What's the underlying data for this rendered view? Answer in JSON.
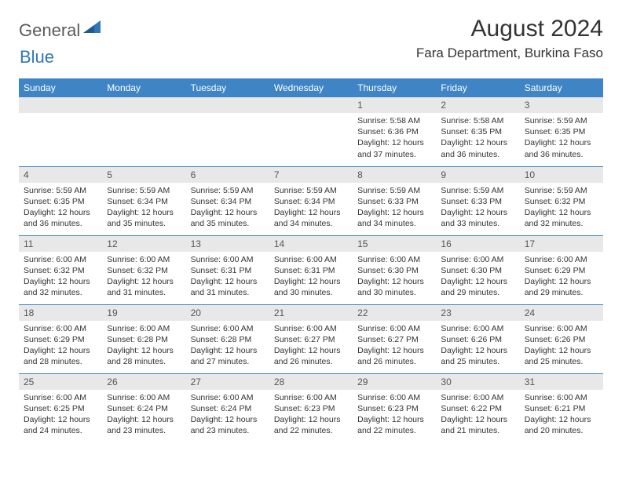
{
  "logo": {
    "general": "General",
    "blue": "Blue"
  },
  "title": "August 2024",
  "location": "Fara Department, Burkina Faso",
  "colors": {
    "header_bg": "#3f85c5",
    "header_text": "#ffffff",
    "daynum_bg": "#e8e8e8",
    "daynum_text": "#555555",
    "text": "#333333",
    "logo_gray": "#5b5b5b",
    "logo_blue": "#2f77b8",
    "border": "#3f85c5"
  },
  "weekdays": [
    "Sunday",
    "Monday",
    "Tuesday",
    "Wednesday",
    "Thursday",
    "Friday",
    "Saturday"
  ],
  "weeks": [
    [
      null,
      null,
      null,
      null,
      {
        "n": "1",
        "sr": "5:58 AM",
        "ss": "6:36 PM",
        "dl": "12 hours and 37 minutes."
      },
      {
        "n": "2",
        "sr": "5:58 AM",
        "ss": "6:35 PM",
        "dl": "12 hours and 36 minutes."
      },
      {
        "n": "3",
        "sr": "5:59 AM",
        "ss": "6:35 PM",
        "dl": "12 hours and 36 minutes."
      }
    ],
    [
      {
        "n": "4",
        "sr": "5:59 AM",
        "ss": "6:35 PM",
        "dl": "12 hours and 36 minutes."
      },
      {
        "n": "5",
        "sr": "5:59 AM",
        "ss": "6:34 PM",
        "dl": "12 hours and 35 minutes."
      },
      {
        "n": "6",
        "sr": "5:59 AM",
        "ss": "6:34 PM",
        "dl": "12 hours and 35 minutes."
      },
      {
        "n": "7",
        "sr": "5:59 AM",
        "ss": "6:34 PM",
        "dl": "12 hours and 34 minutes."
      },
      {
        "n": "8",
        "sr": "5:59 AM",
        "ss": "6:33 PM",
        "dl": "12 hours and 34 minutes."
      },
      {
        "n": "9",
        "sr": "5:59 AM",
        "ss": "6:33 PM",
        "dl": "12 hours and 33 minutes."
      },
      {
        "n": "10",
        "sr": "5:59 AM",
        "ss": "6:32 PM",
        "dl": "12 hours and 32 minutes."
      }
    ],
    [
      {
        "n": "11",
        "sr": "6:00 AM",
        "ss": "6:32 PM",
        "dl": "12 hours and 32 minutes."
      },
      {
        "n": "12",
        "sr": "6:00 AM",
        "ss": "6:32 PM",
        "dl": "12 hours and 31 minutes."
      },
      {
        "n": "13",
        "sr": "6:00 AM",
        "ss": "6:31 PM",
        "dl": "12 hours and 31 minutes."
      },
      {
        "n": "14",
        "sr": "6:00 AM",
        "ss": "6:31 PM",
        "dl": "12 hours and 30 minutes."
      },
      {
        "n": "15",
        "sr": "6:00 AM",
        "ss": "6:30 PM",
        "dl": "12 hours and 30 minutes."
      },
      {
        "n": "16",
        "sr": "6:00 AM",
        "ss": "6:30 PM",
        "dl": "12 hours and 29 minutes."
      },
      {
        "n": "17",
        "sr": "6:00 AM",
        "ss": "6:29 PM",
        "dl": "12 hours and 29 minutes."
      }
    ],
    [
      {
        "n": "18",
        "sr": "6:00 AM",
        "ss": "6:29 PM",
        "dl": "12 hours and 28 minutes."
      },
      {
        "n": "19",
        "sr": "6:00 AM",
        "ss": "6:28 PM",
        "dl": "12 hours and 28 minutes."
      },
      {
        "n": "20",
        "sr": "6:00 AM",
        "ss": "6:28 PM",
        "dl": "12 hours and 27 minutes."
      },
      {
        "n": "21",
        "sr": "6:00 AM",
        "ss": "6:27 PM",
        "dl": "12 hours and 26 minutes."
      },
      {
        "n": "22",
        "sr": "6:00 AM",
        "ss": "6:27 PM",
        "dl": "12 hours and 26 minutes."
      },
      {
        "n": "23",
        "sr": "6:00 AM",
        "ss": "6:26 PM",
        "dl": "12 hours and 25 minutes."
      },
      {
        "n": "24",
        "sr": "6:00 AM",
        "ss": "6:26 PM",
        "dl": "12 hours and 25 minutes."
      }
    ],
    [
      {
        "n": "25",
        "sr": "6:00 AM",
        "ss": "6:25 PM",
        "dl": "12 hours and 24 minutes."
      },
      {
        "n": "26",
        "sr": "6:00 AM",
        "ss": "6:24 PM",
        "dl": "12 hours and 23 minutes."
      },
      {
        "n": "27",
        "sr": "6:00 AM",
        "ss": "6:24 PM",
        "dl": "12 hours and 23 minutes."
      },
      {
        "n": "28",
        "sr": "6:00 AM",
        "ss": "6:23 PM",
        "dl": "12 hours and 22 minutes."
      },
      {
        "n": "29",
        "sr": "6:00 AM",
        "ss": "6:23 PM",
        "dl": "12 hours and 22 minutes."
      },
      {
        "n": "30",
        "sr": "6:00 AM",
        "ss": "6:22 PM",
        "dl": "12 hours and 21 minutes."
      },
      {
        "n": "31",
        "sr": "6:00 AM",
        "ss": "6:21 PM",
        "dl": "12 hours and 20 minutes."
      }
    ]
  ],
  "labels": {
    "sunrise": "Sunrise:",
    "sunset": "Sunset:",
    "daylight": "Daylight:"
  }
}
